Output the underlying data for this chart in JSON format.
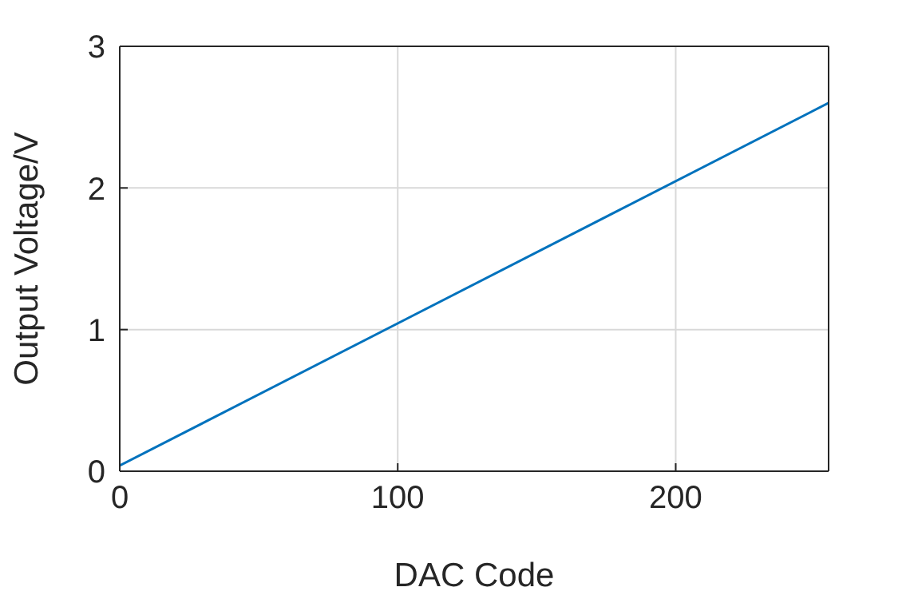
{
  "chart_data": {
    "type": "line",
    "xlabel": "DAC Code",
    "ylabel": "Output Voltage/V",
    "x": [
      0,
      255
    ],
    "series": [
      {
        "color": "#0072bd",
        "values": [
          0.04,
          2.6
        ]
      }
    ],
    "xlim": [
      0,
      255
    ],
    "xticks": [
      0,
      100,
      200
    ],
    "ylim": [
      0,
      3
    ],
    "yticks": [
      0,
      1,
      2,
      3
    ],
    "grid": true,
    "legend": false,
    "marker": "none",
    "line_style": "solid"
  }
}
